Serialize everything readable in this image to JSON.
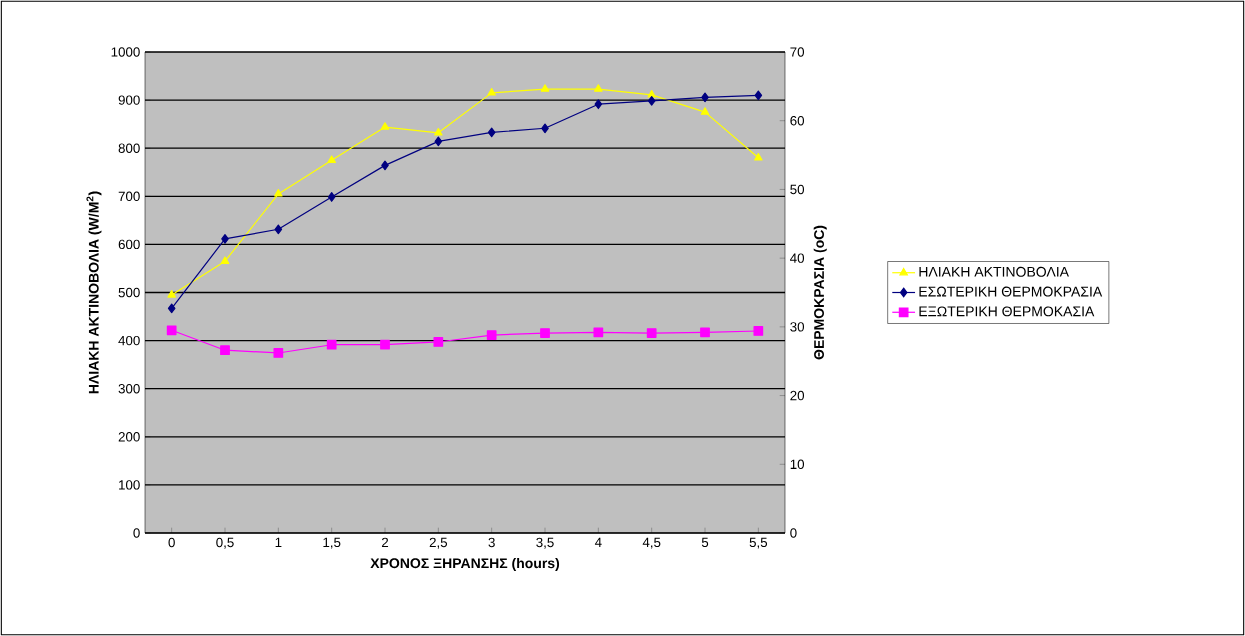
{
  "chart_data": {
    "type": "line",
    "xlabel": "ΧΡΟΝΟΣ ΞΗΡΑΝΣΗΣ (hours)",
    "ylabel": "ΗΛΙΑΚΗ ΑΚΤΙΝΟΒΟΛΙΑ (W/M$^{2}$)",
    "y2label": "ΘΕΡΜΟΚΡΑΣΙΑ (oC)",
    "categories": [
      "0",
      "0,5",
      "1",
      "1,5",
      "2",
      "2,5",
      "3",
      "3,5",
      "4",
      "4,5",
      "5",
      "5,5"
    ],
    "series": [
      {
        "name": "ΗΛΙΑΚΗ ΑΚΤΙΝΟΒΟΛΙΑ",
        "color": "#ffff00",
        "marker": "triangle",
        "values": [
          495,
          565,
          705,
          775,
          844,
          832,
          915,
          923,
          923,
          911,
          875,
          780
        ]
      },
      {
        "name": "ΕΣΩΤΕΡΙΚΗ ΘΕΡΜΟΚΡΑΣΙΑ",
        "color": "#000080",
        "marker": "diamond",
        "axis": "y2",
        "values": [
          32.7,
          42.8,
          44.2,
          48.9,
          53.5,
          57.0,
          58.3,
          58.9,
          62.4,
          62.9,
          63.4,
          63.7
        ]
      },
      {
        "name": "ΕΞΩΤΕΡΙΚΗ ΘΕΡΜΟΚΑΣΙΑ",
        "color": "#ff00ff",
        "marker": "square",
        "axis": "y2",
        "values": [
          29.5,
          26.6,
          26.2,
          27.4,
          27.4,
          27.8,
          28.8,
          29.1,
          29.2,
          29.1,
          29.2,
          29.4
        ]
      }
    ],
    "ylim": [
      0,
      1000
    ],
    "yticks": [
      0,
      100,
      200,
      300,
      400,
      500,
      600,
      700,
      800,
      900,
      1000
    ],
    "y2lim": [
      0,
      70
    ],
    "y2ticks": [
      0,
      10,
      20,
      30,
      40,
      50,
      60,
      70
    ],
    "grid": "y",
    "legend": "right"
  }
}
